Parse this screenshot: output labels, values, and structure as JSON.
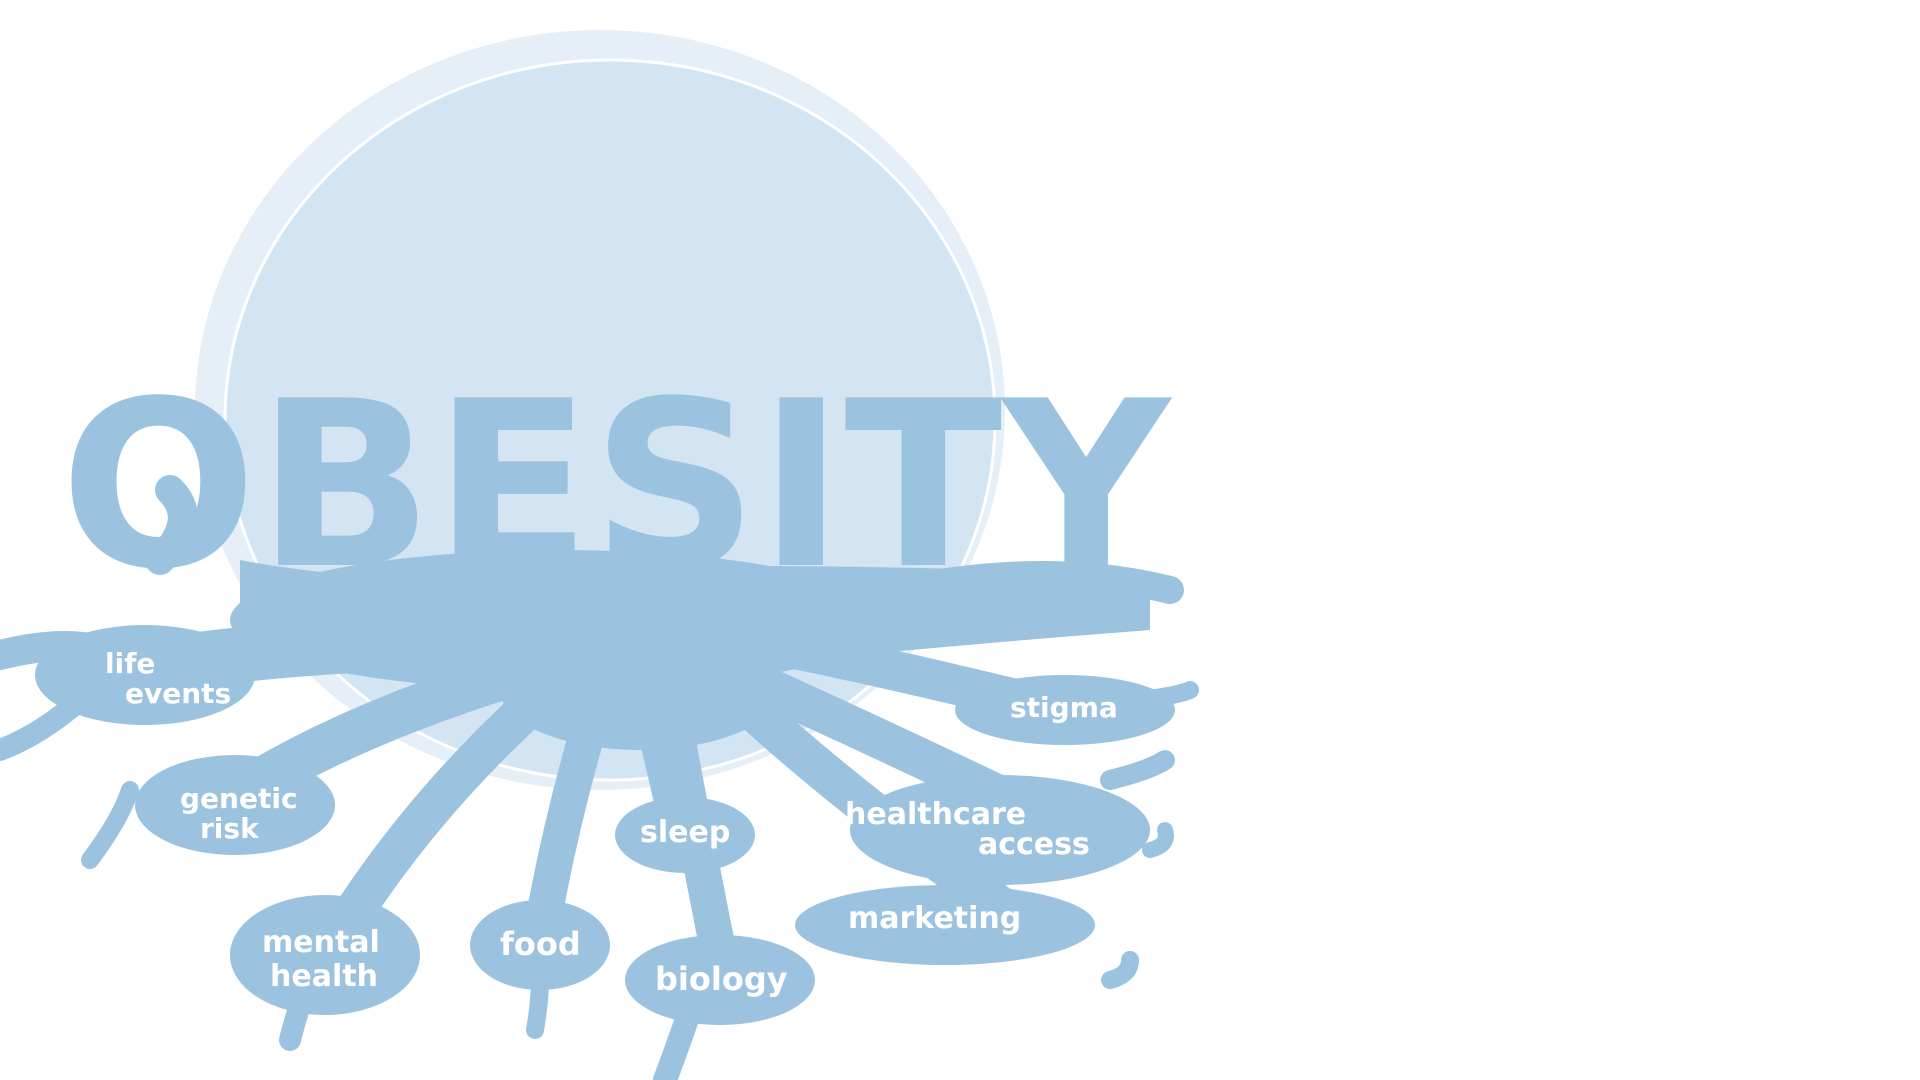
{
  "title": "OBESITY",
  "colors": {
    "background": "#ffffff",
    "circle_fill": "#d3e5f2",
    "circle_ring": "#e5eff8",
    "root_blue": "#9bc3e0",
    "label_text": "#ffffff"
  },
  "roots": [
    {
      "id": "life-events",
      "lines": [
        "life",
        "events"
      ]
    },
    {
      "id": "genetic-risk",
      "lines": [
        "genetic",
        "risk"
      ]
    },
    {
      "id": "mental-health",
      "lines": [
        "mental",
        "health"
      ]
    },
    {
      "id": "food",
      "lines": [
        "food"
      ]
    },
    {
      "id": "sleep",
      "lines": [
        "sleep"
      ]
    },
    {
      "id": "biology",
      "lines": [
        "biology"
      ]
    },
    {
      "id": "stigma",
      "lines": [
        "stigma"
      ]
    },
    {
      "id": "healthcare-access",
      "lines": [
        "healthcare",
        "access"
      ]
    },
    {
      "id": "marketing",
      "lines": [
        "marketing"
      ]
    }
  ]
}
